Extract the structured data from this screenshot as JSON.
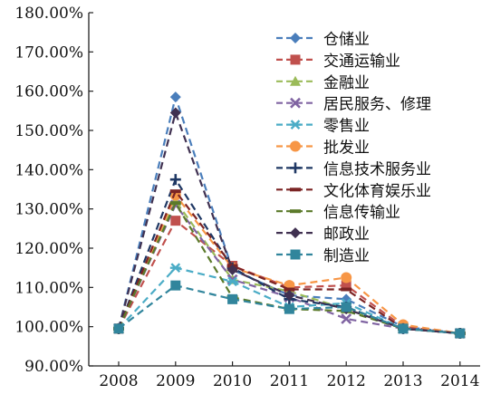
{
  "chart_data": {
    "type": "line",
    "title": "",
    "xlabel": "",
    "ylabel": "",
    "x": [
      "2008",
      "2009",
      "2010",
      "2011",
      "2012",
      "2013",
      "2014"
    ],
    "ylim": [
      90,
      180
    ],
    "yticks": [
      "90.00%",
      "100.00%",
      "110.00%",
      "120.00%",
      "130.00%",
      "140.00%",
      "150.00%",
      "160.00%",
      "170.00%",
      "180.00%"
    ],
    "grid": false,
    "legend_position": "top-right",
    "series": [
      {
        "name": "仓储业",
        "color": "#4a7ebb",
        "marker": "diamond",
        "values": [
          99.5,
          158.5,
          114.5,
          108.0,
          107.0,
          100.0,
          98.3
        ]
      },
      {
        "name": "交通运输业",
        "color": "#c0504d",
        "marker": "square",
        "values": [
          99.5,
          127.0,
          115.5,
          110.0,
          110.5,
          100.0,
          98.3
        ]
      },
      {
        "name": "金融业",
        "color": "#9bbb59",
        "marker": "triangle",
        "values": [
          99.5,
          132.0,
          112.0,
          109.0,
          104.5,
          99.5,
          98.3
        ]
      },
      {
        "name": "居民服务、修理",
        "color": "#8064a2",
        "marker": "x",
        "values": [
          99.5,
          131.0,
          112.0,
          107.5,
          102.0,
          99.5,
          98.3
        ]
      },
      {
        "name": "零售业",
        "color": "#4bacc6",
        "marker": "star",
        "values": [
          99.5,
          115.0,
          111.5,
          105.0,
          106.0,
          99.5,
          98.3
        ]
      },
      {
        "name": "批发业",
        "color": "#f79646",
        "marker": "circle",
        "values": [
          99.5,
          133.5,
          115.0,
          110.5,
          112.5,
          100.5,
          98.3
        ]
      },
      {
        "name": "信息技术服务业",
        "color": "#1f3864",
        "marker": "plus",
        "values": [
          99.5,
          137.5,
          115.0,
          107.0,
          105.0,
          99.5,
          98.3
        ]
      },
      {
        "name": "文化体育娱乐业",
        "color": "#7b2424",
        "marker": "dash",
        "values": [
          99.5,
          134.5,
          115.5,
          109.5,
          109.5,
          99.5,
          98.3
        ]
      },
      {
        "name": "信息传输业",
        "color": "#5b7a2a",
        "marker": "dash",
        "values": [
          99.5,
          131.5,
          107.5,
          104.5,
          104.0,
          99.5,
          98.3
        ]
      },
      {
        "name": "邮政业",
        "color": "#403151",
        "marker": "diamond",
        "values": [
          99.5,
          154.5,
          114.5,
          108.0,
          104.5,
          99.5,
          98.3
        ]
      },
      {
        "name": "制造业",
        "color": "#31859c",
        "marker": "square",
        "values": [
          99.5,
          110.5,
          107.0,
          104.5,
          105.0,
          99.5,
          98.3
        ]
      }
    ]
  }
}
